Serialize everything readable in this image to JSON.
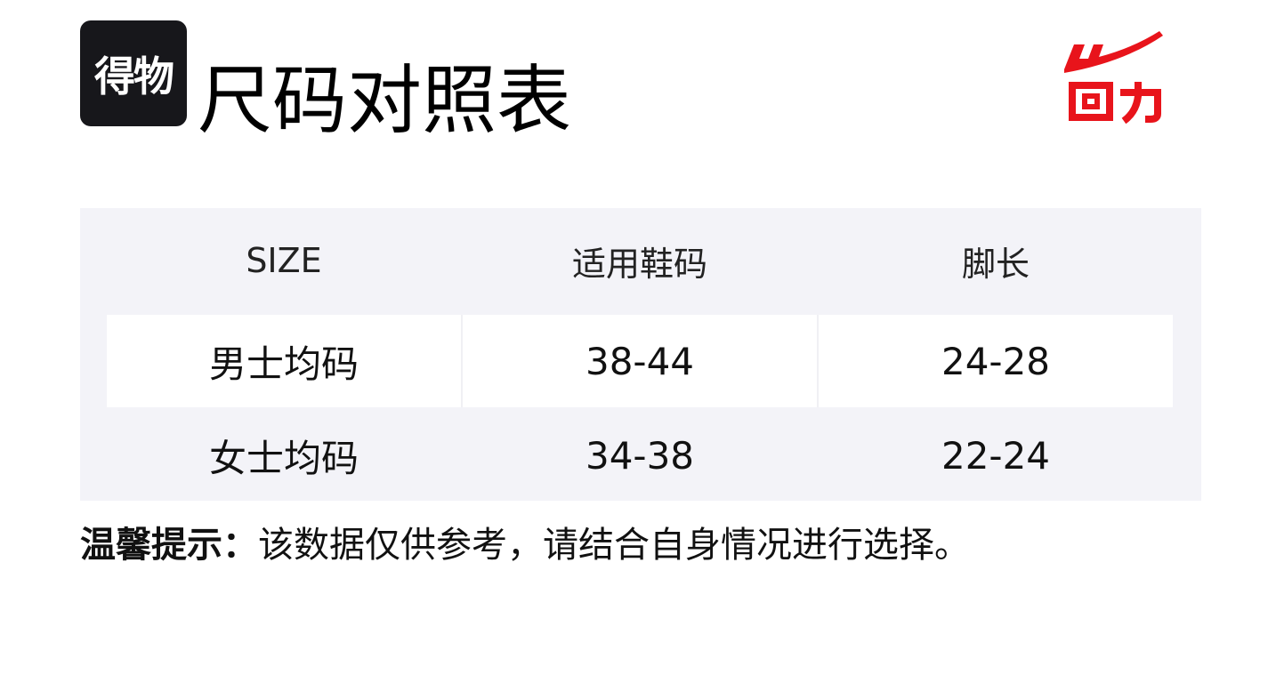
{
  "brand_logo_text": "得物",
  "title": "尺码对照表",
  "partner_logo_text": "回力",
  "colors": {
    "partner_logo": "#e8141b",
    "table_bg": "#f3f3f8",
    "brand_logo_bg": "#17171b"
  },
  "table": {
    "headers": [
      "SIZE",
      "适用鞋码",
      "脚长"
    ],
    "rows": [
      [
        "男士均码",
        "38-44",
        "24-28"
      ],
      [
        "女士均码",
        "34-38",
        "22-24"
      ]
    ]
  },
  "tip": {
    "label": "温馨提示：",
    "text": "该数据仅供参考，请结合自身情况进行选择。"
  }
}
